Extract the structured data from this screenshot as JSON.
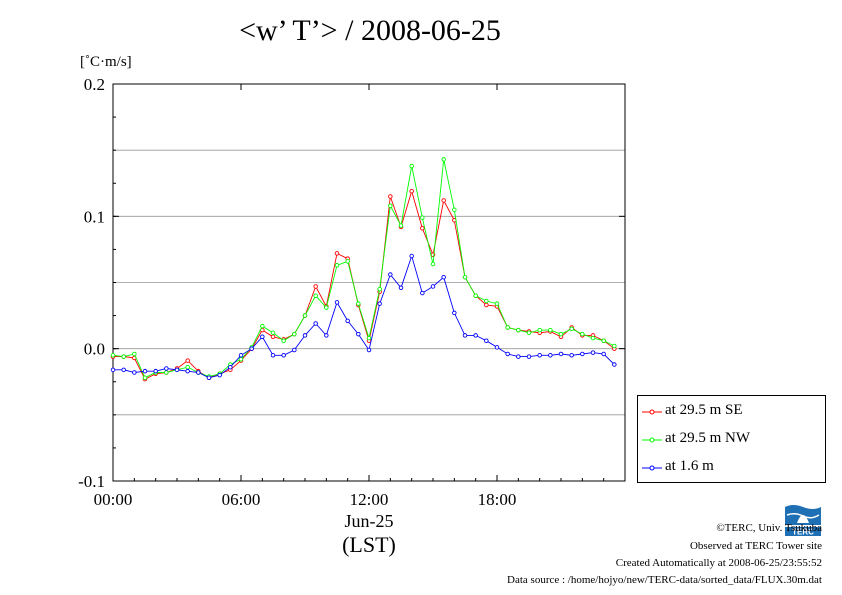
{
  "title": "<w’ T’> / 2008-06-25",
  "unit": "[˚C·m/s]",
  "x_date_label": "Jun-25",
  "x_timezone_label": "(LST)",
  "credits": [
    "©TERC, Univ. Tsukuba",
    "Observed at TERC Tower site",
    "Created Automatically at 2008-06-25/23:55:52",
    "Data source : /home/hojyo/new/TERC-data/sorted_data/FLUX.30m.dat"
  ],
  "logo_text": "TERC",
  "chart_data": {
    "type": "line",
    "title": "<w’ T’> / 2008-06-25",
    "ylabel": "[˚C·m/s]",
    "xlabel": "(LST)",
    "xlim": [
      0,
      24
    ],
    "ylim": [
      -0.1,
      0.2
    ],
    "x_ticks": [
      0,
      6,
      12,
      18
    ],
    "x_tick_labels": [
      "00:00",
      "06:00",
      "12:00",
      "18:00"
    ],
    "y_ticks": [
      -0.1,
      0.0,
      0.1,
      0.2
    ],
    "y_tick_labels": [
      "-0.1",
      "0.0",
      "0.1",
      "0.2"
    ],
    "grid": "horizontal-dashed",
    "legend_position": "bottom-right-outside",
    "x": [
      0,
      0.5,
      1,
      1.5,
      2,
      2.5,
      3,
      3.5,
      4,
      4.5,
      5,
      5.5,
      6,
      6.5,
      7,
      7.5,
      8,
      8.5,
      9,
      9.5,
      10,
      10.5,
      11,
      11.5,
      12,
      12.5,
      13,
      13.5,
      14,
      14.5,
      15,
      15.5,
      16,
      16.5,
      17,
      17.5,
      18,
      18.5,
      19,
      19.5,
      20,
      20.5,
      21,
      21.5,
      22,
      22.5,
      23,
      23.5
    ],
    "series": [
      {
        "name": "at 29.5 m SE",
        "color": "#ff0000",
        "values": [
          -0.006,
          -0.006,
          -0.007,
          -0.023,
          -0.019,
          -0.018,
          -0.015,
          -0.009,
          -0.017,
          -0.022,
          -0.019,
          -0.016,
          -0.009,
          0.0,
          0.014,
          0.009,
          0.007,
          0.011,
          0.025,
          0.047,
          0.032,
          0.072,
          0.068,
          0.033,
          0.006,
          0.043,
          0.115,
          0.092,
          0.119,
          0.091,
          0.071,
          0.112,
          0.097,
          0.054,
          0.04,
          0.033,
          0.032,
          0.016,
          0.014,
          0.013,
          0.012,
          0.013,
          0.009,
          0.016,
          0.01,
          0.01,
          0.006,
          0.0
        ]
      },
      {
        "name": "at 29.5 m NW",
        "color": "#00ff00",
        "values": [
          -0.005,
          -0.006,
          -0.004,
          -0.022,
          -0.018,
          -0.018,
          -0.016,
          -0.014,
          -0.018,
          -0.021,
          -0.019,
          -0.012,
          -0.008,
          0.001,
          0.017,
          0.012,
          0.006,
          0.011,
          0.025,
          0.04,
          0.031,
          0.063,
          0.066,
          0.034,
          0.008,
          0.045,
          0.108,
          0.093,
          0.138,
          0.099,
          0.064,
          0.143,
          0.105,
          0.054,
          0.04,
          0.036,
          0.034,
          0.016,
          0.014,
          0.012,
          0.014,
          0.014,
          0.011,
          0.015,
          0.011,
          0.008,
          0.006,
          0.002
        ]
      },
      {
        "name": "at 1.6 m",
        "color": "#0000ff",
        "values": [
          -0.016,
          -0.016,
          -0.018,
          -0.017,
          -0.017,
          -0.015,
          -0.016,
          -0.017,
          -0.018,
          -0.022,
          -0.02,
          -0.014,
          -0.005,
          0.0,
          0.009,
          -0.005,
          -0.005,
          -0.001,
          0.01,
          0.019,
          0.01,
          0.035,
          0.021,
          0.011,
          -0.001,
          0.034,
          0.056,
          0.046,
          0.07,
          0.042,
          0.047,
          0.054,
          0.027,
          0.01,
          0.01,
          0.006,
          0.001,
          -0.004,
          -0.006,
          -0.006,
          -0.005,
          -0.005,
          -0.004,
          -0.005,
          -0.004,
          -0.003,
          -0.004,
          -0.012
        ]
      }
    ]
  }
}
